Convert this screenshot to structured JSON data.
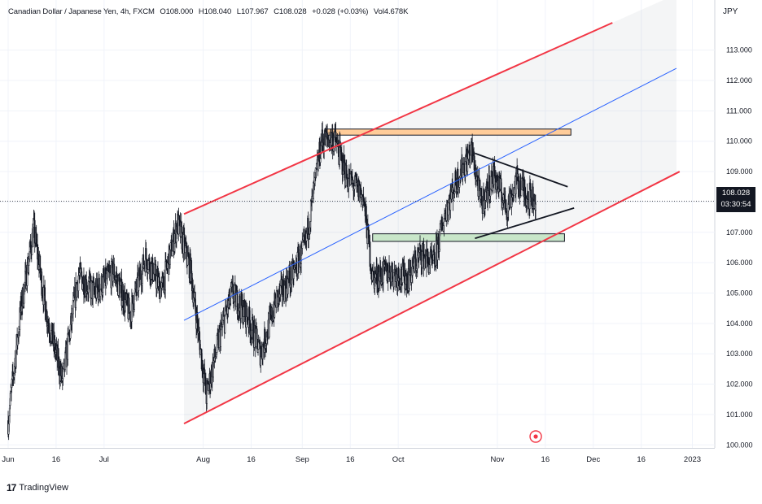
{
  "header": {
    "symbol": "Canadian Dollar / Japanese Yen, 4h, FXCM",
    "open": "O108.000",
    "high": "H108.040",
    "low": "L107.967",
    "close": "C108.028",
    "change": "+0.028 (+0.03%)",
    "volume": "Vol4.678K"
  },
  "currency": "JPY",
  "price_label": {
    "value": "108.028",
    "countdown": "03:30:54"
  },
  "brand": "TradingView",
  "chart_data": {
    "type": "candlestick",
    "title": "Canadian Dollar / Japanese Yen, 4h, FXCM",
    "ylabel": "JPY",
    "ylim": [
      99.9,
      113.9
    ],
    "xlim": [
      "2022-06-01",
      "2023-01-08"
    ],
    "y_ticks": [
      "113.000",
      "112.000",
      "111.000",
      "110.000",
      "109.000",
      "108.000",
      "107.000",
      "106.000",
      "105.000",
      "104.000",
      "103.000",
      "102.000",
      "101.000",
      "100.000"
    ],
    "x_ticks": [
      {
        "label": "Jun",
        "date": "2022-06-01"
      },
      {
        "label": "16",
        "date": "2022-06-16"
      },
      {
        "label": "Jul",
        "date": "2022-07-01"
      },
      {
        "label": "Aug",
        "date": "2022-08-01"
      },
      {
        "label": "16",
        "date": "2022-08-16"
      },
      {
        "label": "Sep",
        "date": "2022-09-01"
      },
      {
        "label": "16",
        "date": "2022-09-16"
      },
      {
        "label": "Oct",
        "date": "2022-10-01"
      },
      {
        "label": "Nov",
        "date": "2022-11-01"
      },
      {
        "label": "16",
        "date": "2022-11-16"
      },
      {
        "label": "Dec",
        "date": "2022-12-01"
      },
      {
        "label": "16",
        "date": "2022-12-16"
      },
      {
        "label": "2023",
        "date": "2023-01-01"
      }
    ],
    "last_price": 108.028,
    "price_path": [
      [
        "2022-06-01",
        100.8
      ],
      [
        "2022-06-05",
        104.5
      ],
      [
        "2022-06-09",
        107.1
      ],
      [
        "2022-06-13",
        104.3
      ],
      [
        "2022-06-18",
        102.1
      ],
      [
        "2022-06-23",
        105.6
      ],
      [
        "2022-06-28",
        105.0
      ],
      [
        "2022-07-04",
        105.7
      ],
      [
        "2022-07-09",
        104.3
      ],
      [
        "2022-07-14",
        106.2
      ],
      [
        "2022-07-19",
        105.1
      ],
      [
        "2022-07-24",
        107.3
      ],
      [
        "2022-07-28",
        105.8
      ],
      [
        "2022-08-02",
        101.6
      ],
      [
        "2022-08-06",
        103.5
      ],
      [
        "2022-08-10",
        105.0
      ],
      [
        "2022-08-15",
        104.2
      ],
      [
        "2022-08-19",
        103.0
      ],
      [
        "2022-08-24",
        104.8
      ],
      [
        "2022-08-29",
        105.6
      ],
      [
        "2022-09-02",
        106.6
      ],
      [
        "2022-09-07",
        110.0
      ],
      [
        "2022-09-11",
        110.1
      ],
      [
        "2022-09-15",
        108.8
      ],
      [
        "2022-09-20",
        108.2
      ],
      [
        "2022-09-23",
        105.5
      ],
      [
        "2022-09-28",
        105.7
      ],
      [
        "2022-10-04",
        105.5
      ],
      [
        "2022-10-08",
        106.3
      ],
      [
        "2022-10-12",
        105.9
      ],
      [
        "2022-10-16",
        107.8
      ],
      [
        "2022-10-20",
        108.9
      ],
      [
        "2022-10-24",
        109.7
      ],
      [
        "2022-10-27",
        107.9
      ],
      [
        "2022-10-31",
        108.9
      ],
      [
        "2022-11-04",
        107.8
      ],
      [
        "2022-11-07",
        108.7
      ],
      [
        "2022-11-10",
        108.3
      ],
      [
        "2022-11-13",
        108.028
      ]
    ],
    "annotations": {
      "channel_upper": [
        [
          "2022-07-26",
          107.6
        ],
        [
          "2022-12-07",
          113.9
        ]
      ],
      "channel_lower": [
        [
          "2022-07-26",
          100.7
        ],
        [
          "2022-12-28",
          109.0
        ]
      ],
      "channel_mid": [
        [
          "2022-07-26",
          104.1
        ],
        [
          "2022-12-27",
          112.4
        ]
      ],
      "resistance_zone": {
        "from": "2022-09-08",
        "to": "2022-11-24",
        "price": [
          110.2,
          110.4
        ]
      },
      "support_zone": {
        "from": "2022-09-23",
        "to": "2022-11-22",
        "price": [
          106.7,
          106.95
        ]
      },
      "triangle_upper": [
        [
          "2022-10-25",
          109.6
        ],
        [
          "2022-11-23",
          108.5
        ]
      ],
      "triangle_lower": [
        [
          "2022-10-25",
          106.8
        ],
        [
          "2022-11-25",
          107.8
        ]
      ]
    },
    "colors": {
      "channel": "#f23645",
      "midline": "#2962ff",
      "resistance_zone": "#ffcc99",
      "support_zone": "#c8e6c9",
      "candles": "#131722"
    },
    "grid": true
  }
}
